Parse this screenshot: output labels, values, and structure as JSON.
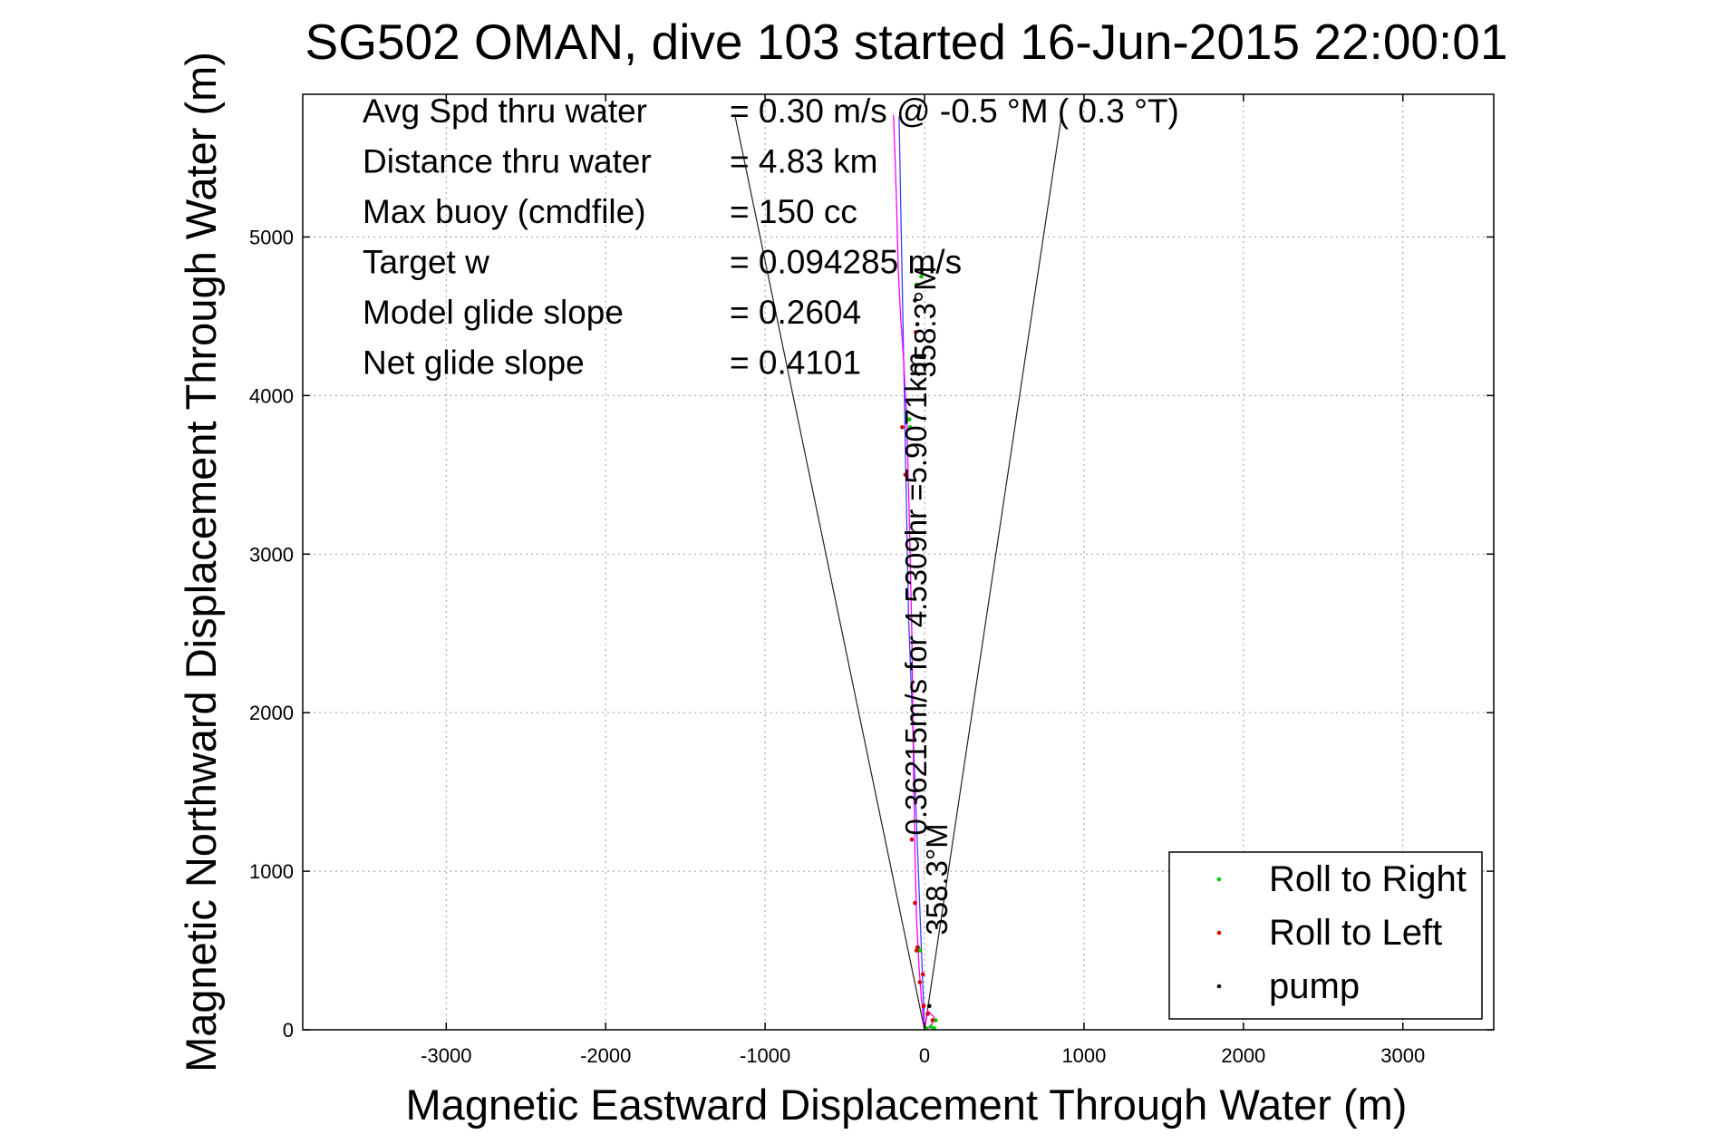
{
  "chart_data": {
    "type": "line",
    "title": "SG502 OMAN, dive 103 started 16-Jun-2015 22:00:01",
    "xlabel": "Magnetic Eastward Displacement Through Water (m)",
    "ylabel": "Magnetic Northward Displacement Through Water (m)",
    "xlim": [
      -3900,
      3570
    ],
    "ylim": [
      0,
      5900
    ],
    "xticks": [
      -3000,
      -2000,
      -1000,
      0,
      1000,
      2000,
      3000
    ],
    "xtick_labels": [
      "-3000",
      "-2000",
      "-1000",
      "0",
      "1000",
      "2000",
      "3000"
    ],
    "yticks": [
      0,
      1000,
      2000,
      3000,
      4000,
      5000
    ],
    "ytick_labels": [
      "0",
      "1000",
      "2000",
      "3000",
      "4000",
      "5000"
    ],
    "grid": true,
    "legend_position": "bottom-right",
    "stats": [
      {
        "label": "Avg Spd thru water",
        "value": "=  0.30 m/s @  -0.5 °M (  0.3 °T)"
      },
      {
        "label": "Distance thru water",
        "value": "=  4.83 km"
      },
      {
        "label": "Max buoy (cmdfile)",
        "value": "= 150 cc"
      },
      {
        "label": "Target w",
        "value": "= 0.094285 m/s"
      },
      {
        "label": "Model glide slope",
        "value": "= 0.2604"
      },
      {
        "label": "Net glide slope",
        "value": "= 0.4101"
      }
    ],
    "annotations": {
      "heading_upper": "358.3°M",
      "heading_lower": "358.3°M",
      "speed_label": "0.36215m/s for 4.5309hr =5.9071km"
    },
    "cone_lines": [
      {
        "x": [
          0,
          -1190
        ],
        "y": [
          0,
          5770
        ]
      },
      {
        "x": [
          0,
          860
        ],
        "y": [
          0,
          5770
        ]
      }
    ],
    "track": {
      "name": "track",
      "color": "#ff00ff",
      "x": [
        0,
        20,
        60,
        40,
        0,
        -20,
        -35,
        -40,
        -50,
        -60,
        -70,
        -80,
        -95,
        -110,
        -130,
        -150,
        -165,
        -175,
        -185,
        -195
      ],
      "y": [
        0,
        120,
        80,
        20,
        0,
        200,
        400,
        500,
        700,
        1100,
        1700,
        2500,
        3200,
        3800,
        4200,
        4500,
        4800,
        5200,
        5500,
        5770
      ]
    },
    "vector": {
      "name": "vector",
      "color": "#4040ff",
      "x": [
        0,
        -100,
        -160
      ],
      "y": [
        0,
        2600,
        5760
      ]
    },
    "series": [
      {
        "name": "Roll to Right",
        "color": "#00cc00",
        "x": [
          10,
          40,
          60,
          70,
          -30,
          -40,
          -90,
          -95,
          -50,
          -20
        ],
        "y": [
          10,
          20,
          10,
          60,
          500,
          520,
          3800,
          3850,
          4700,
          4750
        ]
      },
      {
        "name": "Roll to Left",
        "color": "#dd0000",
        "x": [
          -50,
          -45,
          -30,
          -10,
          -5,
          20,
          50,
          -60,
          -80,
          -120,
          -140,
          -55
        ],
        "y": [
          500,
          520,
          300,
          350,
          150,
          100,
          60,
          800,
          1200,
          3500,
          3800,
          4400
        ]
      },
      {
        "name": "pump",
        "color": "#000000",
        "x": [
          30,
          -45,
          -60
        ],
        "y": [
          150,
          4450,
          4600
        ]
      }
    ]
  }
}
